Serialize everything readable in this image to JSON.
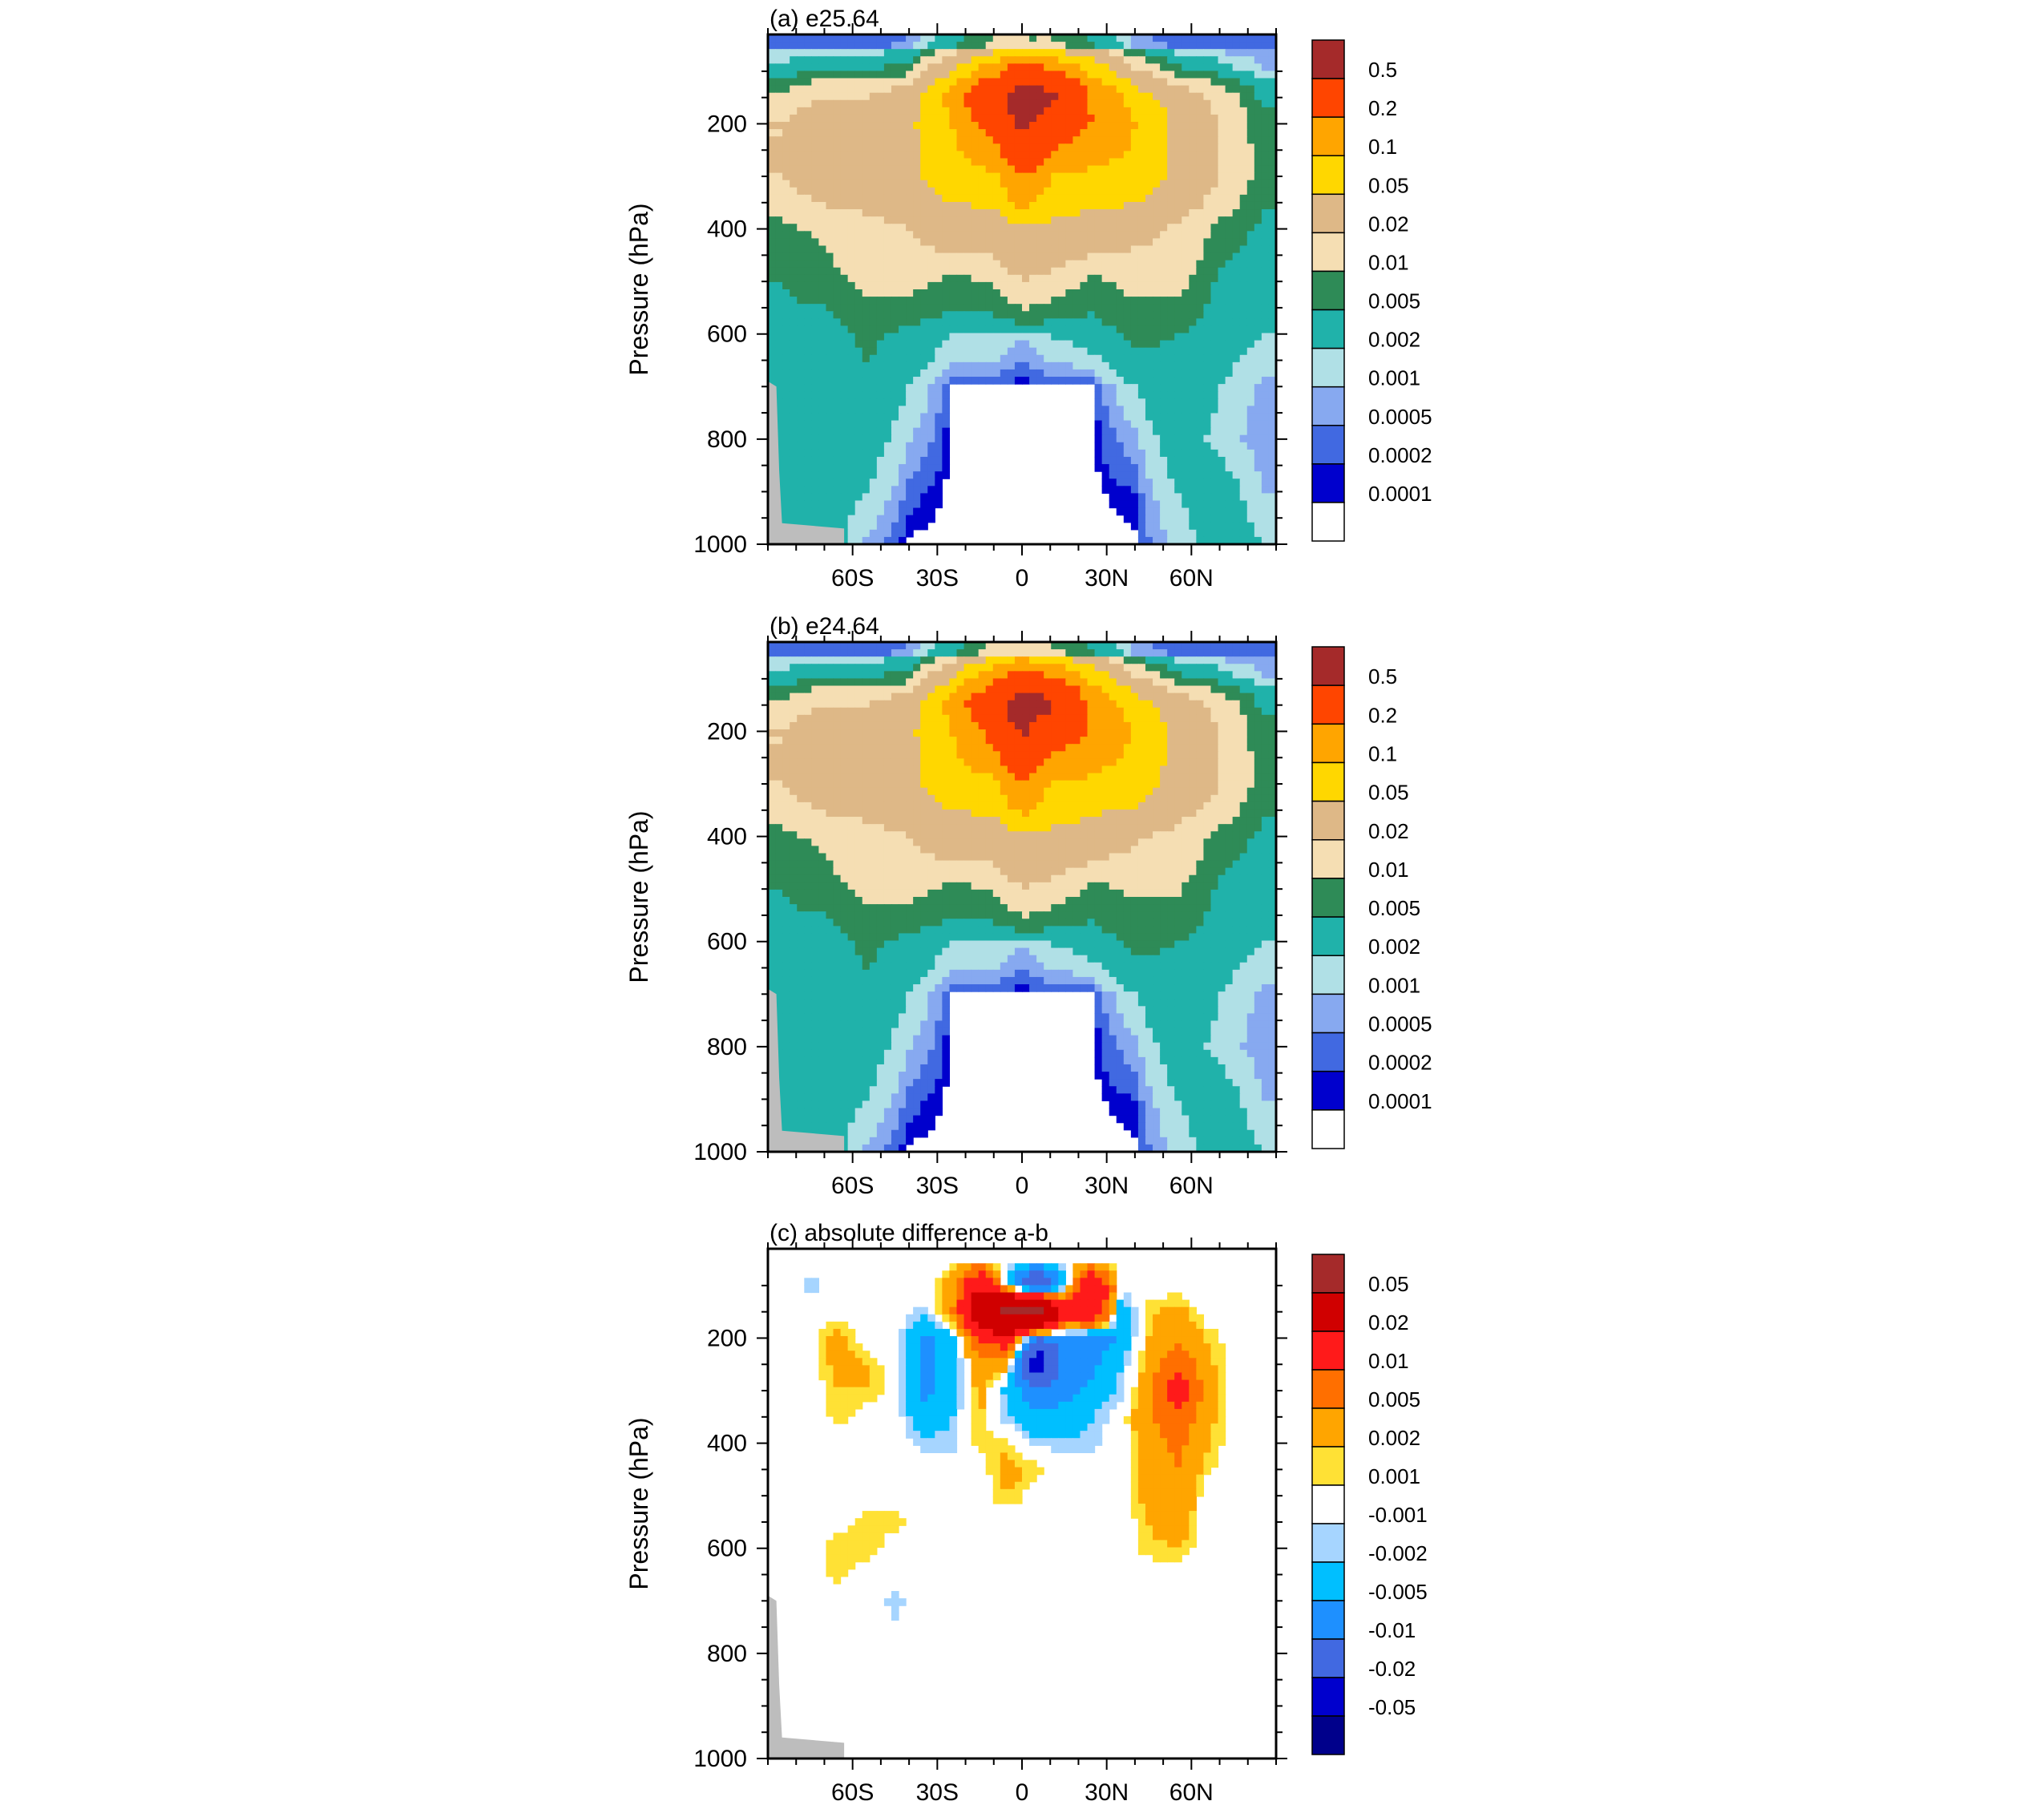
{
  "chart_data": [
    {
      "type": "heatmap",
      "title": "(a) e25.64",
      "ylabel": "Pressure (hPa)",
      "xlabel": "",
      "x_ticks": [
        "60S",
        "30S",
        "0",
        "30N",
        "60N"
      ],
      "x_tick_values": [
        -60,
        -30,
        0,
        30,
        60
      ],
      "y_ticks": [
        "200",
        "400",
        "600",
        "800",
        "1000"
      ],
      "y_tick_values": [
        200,
        400,
        600,
        800,
        1000
      ],
      "xlim": [
        -90,
        90
      ],
      "ylim": [
        1000,
        30
      ],
      "colorbar_labels": [
        "0.5",
        "0.2",
        "0.1",
        "0.05",
        "0.02",
        "0.01",
        "0.005",
        "0.002",
        "0.001",
        "0.0005",
        "0.0002",
        "0.0001"
      ],
      "colorbar_colors": [
        "#a52a2a",
        "#ff4500",
        "#ffa500",
        "#ffd700",
        "#deb887",
        "#f5deb3",
        "#2e8b57",
        "#20b2aa",
        "#b0e0e6",
        "#87a9f0",
        "#4169e1",
        "#0000cd",
        "#ffffff"
      ],
      "field": {
        "lat": [
          -85,
          -70,
          -55,
          -40,
          -25,
          -10,
          0,
          10,
          25,
          40,
          55,
          70,
          85
        ],
        "p": [
          50,
          100,
          150,
          200,
          300,
          400,
          500,
          600,
          700,
          800,
          900,
          1000
        ],
        "values": [
          [
            0.0003,
            0.0003,
            0.0003,
            0.0005,
            0.003,
            0.01,
            0.01,
            0.01,
            0.004,
            0.0006,
            0.0003,
            0.0003,
            0.0003
          ],
          [
            0.003,
            0.005,
            0.005,
            0.007,
            0.04,
            0.15,
            0.3,
            0.2,
            0.08,
            0.02,
            0.006,
            0.003,
            0.001
          ],
          [
            0.012,
            0.02,
            0.02,
            0.03,
            0.12,
            0.4,
            0.7,
            0.6,
            0.18,
            0.07,
            0.03,
            0.015,
            0.004
          ],
          [
            0.02,
            0.03,
            0.03,
            0.04,
            0.1,
            0.25,
            0.6,
            0.3,
            0.2,
            0.1,
            0.04,
            0.02,
            0.006
          ],
          [
            0.02,
            0.03,
            0.03,
            0.04,
            0.07,
            0.08,
            0.2,
            0.1,
            0.08,
            0.08,
            0.04,
            0.02,
            0.007
          ],
          [
            0.008,
            0.012,
            0.016,
            0.02,
            0.03,
            0.03,
            0.04,
            0.04,
            0.03,
            0.025,
            0.018,
            0.008,
            0.004
          ],
          [
            0.005,
            0.007,
            0.012,
            0.012,
            0.008,
            0.01,
            0.02,
            0.015,
            0.008,
            0.012,
            0.012,
            0.004,
            0.003
          ],
          [
            0.004,
            0.003,
            0.006,
            0.004,
            0.002,
            0.002,
            0.001,
            0.002,
            0.003,
            0.006,
            0.005,
            0.003,
            0.002
          ],
          [
            0.005,
            0.003,
            0.004,
            0.002,
            5e-05,
            5e-05,
            5e-05,
            5e-05,
            5e-05,
            0.002,
            0.004,
            0.002,
            0.0008
          ],
          [
            0.004,
            0.003,
            0.003,
            0.001,
            5e-05,
            5e-05,
            5e-05,
            5e-05,
            5e-05,
            0.0008,
            0.003,
            0.0015,
            0.0006
          ],
          [
            0.004,
            0.003,
            0.002,
            0.0003,
            5e-05,
            5e-05,
            5e-05,
            5e-05,
            5e-05,
            0.0002,
            0.002,
            0.003,
            0.001
          ],
          [
            0.004,
            0.003,
            0.0008,
            5e-05,
            5e-05,
            5e-05,
            5e-05,
            5e-05,
            5e-05,
            5e-05,
            0.0012,
            0.003,
            0.002
          ]
        ]
      }
    },
    {
      "type": "heatmap",
      "title": "(b) e24.64",
      "ylabel": "Pressure (hPa)",
      "xlabel": "",
      "x_ticks": [
        "60S",
        "30S",
        "0",
        "30N",
        "60N"
      ],
      "x_tick_values": [
        -60,
        -30,
        0,
        30,
        60
      ],
      "y_ticks": [
        "200",
        "400",
        "600",
        "800",
        "1000"
      ],
      "y_tick_values": [
        200,
        400,
        600,
        800,
        1000
      ],
      "xlim": [
        -90,
        90
      ],
      "ylim": [
        1000,
        30
      ],
      "colorbar_labels": [
        "0.5",
        "0.2",
        "0.1",
        "0.05",
        "0.02",
        "0.01",
        "0.005",
        "0.002",
        "0.001",
        "0.0005",
        "0.0002",
        "0.0001"
      ],
      "colorbar_colors": [
        "#a52a2a",
        "#ff4500",
        "#ffa500",
        "#ffd700",
        "#deb887",
        "#f5deb3",
        "#2e8b57",
        "#20b2aa",
        "#b0e0e6",
        "#87a9f0",
        "#4169e1",
        "#0000cd",
        "#ffffff"
      ],
      "field": {
        "lat": [
          -85,
          -70,
          -55,
          -40,
          -25,
          -10,
          0,
          10,
          25,
          40,
          55,
          70,
          85
        ],
        "p": [
          50,
          100,
          150,
          200,
          300,
          400,
          500,
          600,
          700,
          800,
          900,
          1000
        ],
        "values": [
          [
            0.0003,
            0.0003,
            0.0003,
            0.0005,
            0.003,
            0.012,
            0.012,
            0.01,
            0.004,
            0.0006,
            0.0003,
            0.0003,
            0.0003
          ],
          [
            0.003,
            0.005,
            0.005,
            0.007,
            0.04,
            0.16,
            0.35,
            0.22,
            0.08,
            0.02,
            0.006,
            0.003,
            0.001
          ],
          [
            0.012,
            0.02,
            0.02,
            0.03,
            0.12,
            0.35,
            0.75,
            0.55,
            0.16,
            0.07,
            0.03,
            0.015,
            0.004
          ],
          [
            0.02,
            0.03,
            0.03,
            0.04,
            0.1,
            0.24,
            0.55,
            0.28,
            0.19,
            0.09,
            0.04,
            0.02,
            0.006
          ],
          [
            0.02,
            0.03,
            0.03,
            0.04,
            0.07,
            0.08,
            0.19,
            0.1,
            0.08,
            0.07,
            0.035,
            0.02,
            0.007
          ],
          [
            0.008,
            0.012,
            0.016,
            0.02,
            0.03,
            0.03,
            0.04,
            0.04,
            0.03,
            0.022,
            0.016,
            0.008,
            0.004
          ],
          [
            0.005,
            0.007,
            0.012,
            0.012,
            0.008,
            0.01,
            0.02,
            0.015,
            0.008,
            0.011,
            0.011,
            0.004,
            0.003
          ],
          [
            0.004,
            0.003,
            0.006,
            0.004,
            0.002,
            0.002,
            0.001,
            0.002,
            0.003,
            0.006,
            0.005,
            0.003,
            0.002
          ],
          [
            0.005,
            0.003,
            0.004,
            0.002,
            5e-05,
            5e-05,
            5e-05,
            5e-05,
            5e-05,
            0.002,
            0.004,
            0.002,
            0.0008
          ],
          [
            0.004,
            0.003,
            0.003,
            0.001,
            5e-05,
            5e-05,
            5e-05,
            5e-05,
            5e-05,
            0.0008,
            0.003,
            0.0015,
            0.0006
          ],
          [
            0.004,
            0.003,
            0.002,
            0.0003,
            5e-05,
            5e-05,
            5e-05,
            5e-05,
            5e-05,
            0.0002,
            0.002,
            0.003,
            0.001
          ],
          [
            0.004,
            0.003,
            0.0008,
            5e-05,
            5e-05,
            5e-05,
            5e-05,
            5e-05,
            5e-05,
            5e-05,
            0.0012,
            0.003,
            0.002
          ]
        ]
      }
    },
    {
      "type": "heatmap",
      "title": "(c) absolute difference a-b",
      "ylabel": "Pressure (hPa)",
      "xlabel": "",
      "x_ticks": [
        "60S",
        "30S",
        "0",
        "30N",
        "60N"
      ],
      "x_tick_values": [
        -60,
        -30,
        0,
        30,
        60
      ],
      "y_ticks": [
        "200",
        "400",
        "600",
        "800",
        "1000"
      ],
      "y_tick_values": [
        200,
        400,
        600,
        800,
        1000
      ],
      "xlim": [
        -90,
        90
      ],
      "ylim": [
        1000,
        30
      ],
      "colorbar_labels": [
        "0.05",
        "0.02",
        "0.01",
        "0.005",
        "0.002",
        "0.001",
        "-0.001",
        "-0.002",
        "-0.005",
        "-0.01",
        "-0.02",
        "-0.05"
      ],
      "colorbar_colors": [
        "#a52a2a",
        "#d00000",
        "#ff1a1a",
        "#ff6f00",
        "#ffa500",
        "#ffe135",
        "#ffffff",
        "#a6d5ff",
        "#00bfff",
        "#1e90ff",
        "#4169e1",
        "#0000cd",
        "#00008b"
      ],
      "field": {
        "lat": [
          -85,
          -75,
          -65,
          -55,
          -45,
          -35,
          -25,
          -15,
          -5,
          5,
          15,
          25,
          35,
          45,
          55,
          65,
          75,
          85
        ],
        "p": [
          50,
          100,
          150,
          200,
          250,
          300,
          350,
          400,
          450,
          500,
          550,
          600,
          650,
          700,
          800,
          900,
          1000
        ],
        "values": [
          [
            0,
            0,
            0,
            0,
            0,
            0,
            0,
            0,
            0,
            0,
            0,
            0,
            0,
            0,
            0,
            0,
            0,
            0
          ],
          [
            0,
            -0.0015,
            0,
            0,
            0,
            0,
            0.003,
            0.02,
            -0.003,
            -0.02,
            -0.003,
            0.02,
            0,
            0,
            0,
            0,
            0,
            0
          ],
          [
            0,
            0,
            0,
            0,
            0,
            -0.0015,
            0.004,
            0.03,
            0.06,
            0.06,
            0.015,
            0.02,
            -0.004,
            0.0015,
            0.003,
            0,
            0,
            0
          ],
          [
            0,
            0,
            0.003,
            0,
            0,
            -0.006,
            -0.003,
            0.01,
            0.015,
            -0.01,
            -0.006,
            -0.008,
            -0.004,
            0.002,
            0.004,
            0.002,
            0,
            0
          ],
          [
            0,
            0,
            0.003,
            0.002,
            0,
            -0.006,
            -0.004,
            0.004,
            0.003,
            -0.03,
            -0.008,
            -0.006,
            -0.002,
            0.003,
            0.008,
            0.003,
            0,
            0
          ],
          [
            0,
            0,
            0.002,
            0.002,
            0,
            -0.006,
            -0.004,
            0.003,
            -0.003,
            -0.008,
            -0.006,
            -0.004,
            -0.0015,
            0.004,
            0.015,
            0.004,
            0,
            0
          ],
          [
            0,
            0,
            0.0015,
            0,
            0,
            -0.004,
            -0.002,
            0.002,
            -0.002,
            -0.004,
            -0.004,
            -0.002,
            0,
            0.005,
            0.008,
            0.003,
            0,
            0
          ],
          [
            0,
            0,
            0,
            0,
            0,
            -0.0015,
            -0.0015,
            0.0015,
            0.0015,
            -0.0015,
            -0.0015,
            -0.0015,
            0,
            0.003,
            0.006,
            0.0025,
            0,
            0
          ],
          [
            0,
            0,
            0,
            0,
            0,
            0,
            0,
            0,
            0.003,
            0.0015,
            0,
            0,
            0,
            0.003,
            0.005,
            0.0015,
            0,
            0
          ],
          [
            0,
            0,
            0,
            0,
            0,
            0,
            0,
            0,
            0.002,
            0,
            0,
            0,
            0,
            0.003,
            0.005,
            0,
            0,
            0
          ],
          [
            0,
            0,
            0,
            0.0015,
            0.0015,
            0,
            0,
            0,
            0,
            0,
            0,
            0,
            0,
            0.002,
            0.004,
            0,
            0,
            0
          ],
          [
            0,
            0,
            0.002,
            0.002,
            0,
            0,
            0,
            0,
            0,
            0,
            0,
            0,
            0,
            0.0015,
            0.002,
            0,
            0,
            0
          ],
          [
            0,
            0,
            0.0015,
            0,
            0,
            0,
            0,
            0,
            0,
            0,
            0,
            0,
            0,
            0,
            0,
            0,
            0,
            0
          ],
          [
            0,
            0,
            0,
            0,
            -0.0015,
            0,
            0,
            0,
            0,
            0,
            0,
            0,
            0,
            0,
            0,
            0,
            0,
            0
          ],
          [
            0,
            0,
            0,
            0,
            0,
            0,
            0,
            0,
            0,
            0,
            0,
            0,
            0,
            0,
            0,
            0,
            0,
            0
          ],
          [
            0,
            0,
            0,
            0,
            0,
            0,
            0,
            0,
            0,
            0,
            0,
            0,
            0,
            0,
            0,
            0,
            0,
            0
          ],
          [
            0,
            0,
            0,
            0,
            0,
            0,
            0,
            0,
            0,
            0,
            0,
            0,
            0,
            0,
            0,
            0,
            0,
            0
          ]
        ]
      }
    }
  ]
}
